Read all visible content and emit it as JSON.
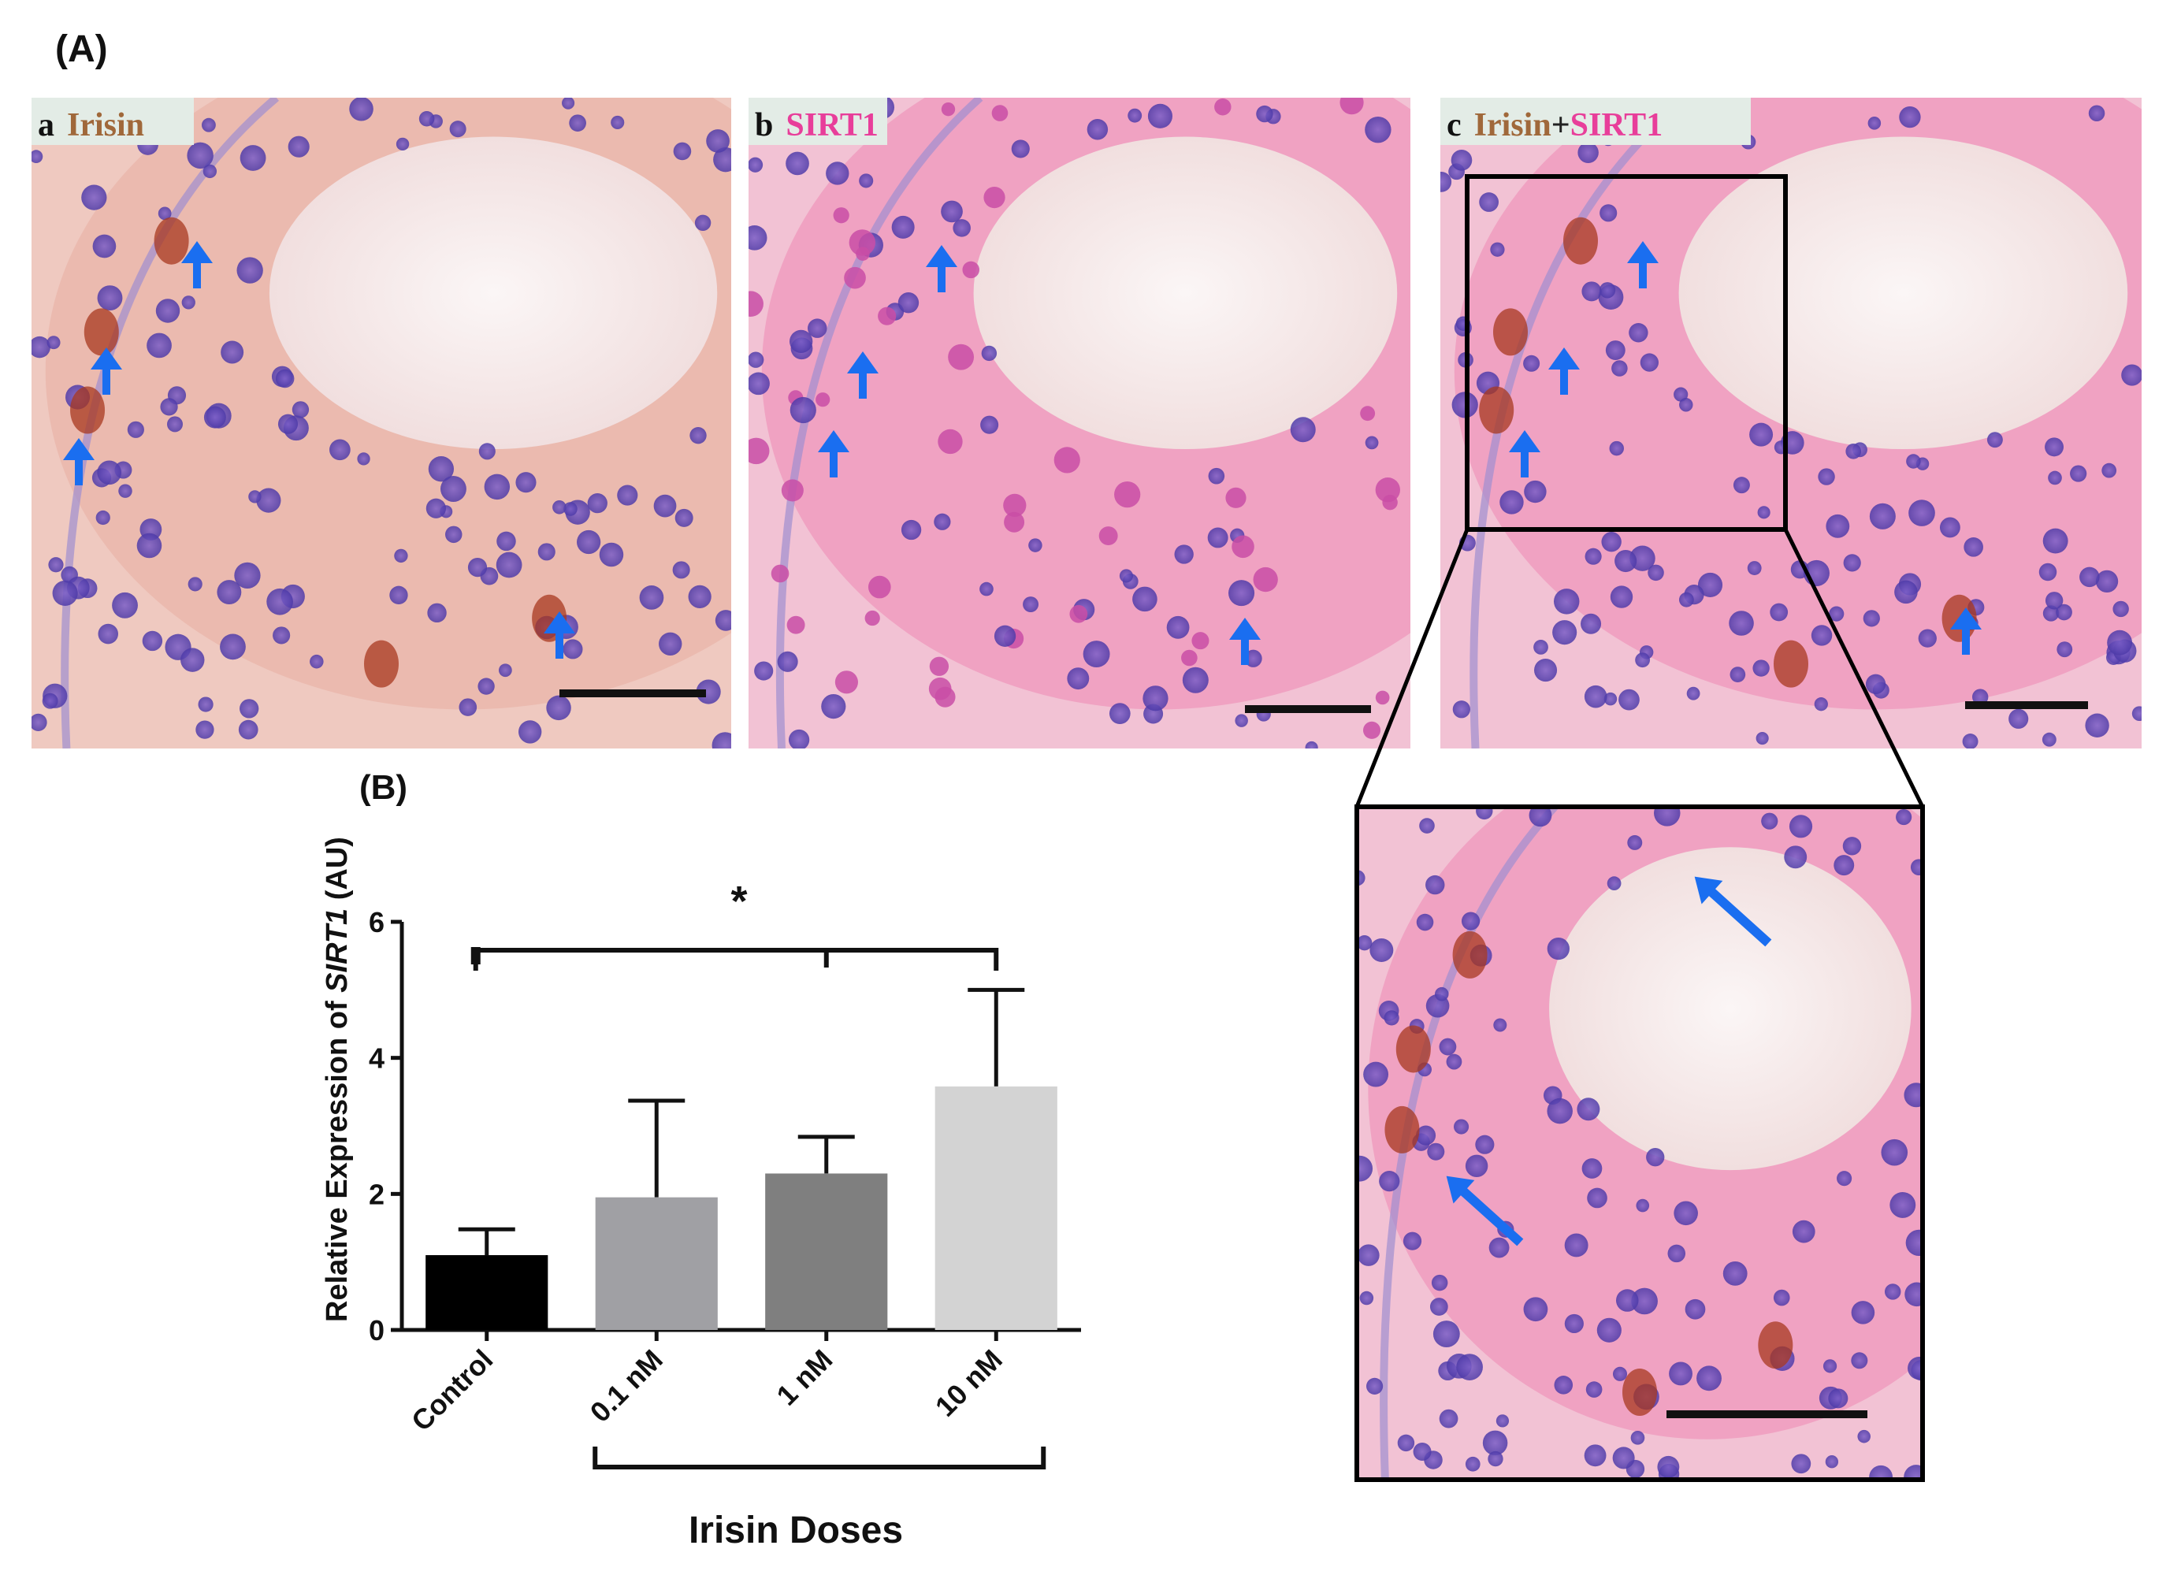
{
  "panel_A": {
    "label": "(A)",
    "images": [
      {
        "letter": "a",
        "parts": [
          {
            "text": "Irisin",
            "color": "#a0683a"
          }
        ]
      },
      {
        "letter": "b",
        "parts": [
          {
            "text": "SIRT1",
            "color": "#e83e9a"
          }
        ]
      },
      {
        "letter": "c",
        "parts": [
          {
            "text": "Irisin",
            "color": "#a0683a"
          },
          {
            "text": "+",
            "color": "#222222"
          },
          {
            "text": "SIRT1",
            "color": "#e83e9a"
          }
        ]
      }
    ]
  },
  "panel_B": {
    "label": "(B)"
  },
  "chart_data": {
    "type": "bar",
    "categories": [
      "Control",
      "0.1 nM",
      "1 nM",
      "10 nM"
    ],
    "values": [
      1.1,
      1.95,
      2.3,
      3.58
    ],
    "errors": [
      0.38,
      1.42,
      0.54,
      1.42
    ],
    "colors": [
      "#000000",
      "#a0a0a4",
      "#7f7f7f",
      "#d3d3d3"
    ],
    "ylabel_prefix": "Relative Expression of ",
    "ylabel_gene": "SIRT1",
    "ylabel_suffix": " (AU)",
    "xlabel": "Irisin Doses",
    "ylim": [
      0,
      6
    ],
    "yticks": [
      0,
      2,
      4,
      6
    ],
    "significance": "*"
  }
}
